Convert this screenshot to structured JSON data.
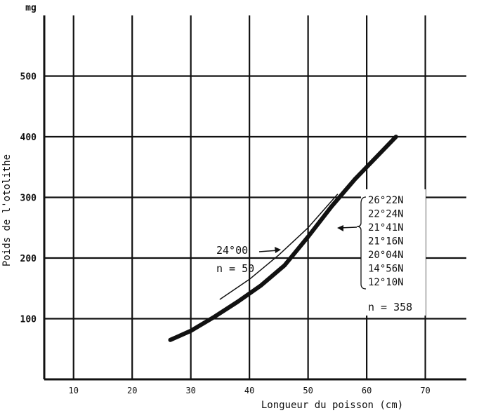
{
  "chart_data": {
    "type": "line",
    "title": "",
    "xlabel": "Longueur du poisson (cm)",
    "ylabel": "Poids de l'otolithe",
    "y_unit": "mg",
    "xlim": [
      5,
      77
    ],
    "ylim": [
      0,
      600
    ],
    "x_ticks": [
      "10",
      "20",
      "30",
      "40",
      "50",
      "60",
      "70"
    ],
    "y_ticks": [
      "100",
      "200",
      "300",
      "400",
      "500"
    ],
    "grid": true,
    "series": [
      {
        "x": [
          26.5,
          30,
          34,
          38,
          42,
          46,
          50,
          54,
          58,
          62,
          65
        ],
        "y": [
          65,
          80,
          103,
          128,
          155,
          188,
          235,
          285,
          330,
          370,
          400
        ]
      },
      {
        "x": [
          35,
          40,
          45,
          50,
          55
        ],
        "y": [
          132,
          165,
          205,
          250,
          305
        ]
      }
    ],
    "annotations": {
      "thin_curve_label": "24°00",
      "thin_curve_n": "n = 50",
      "thick_curve_latitudes": [
        "26°22N",
        "22°24N",
        "21°41N",
        "21°16N",
        "20°04N",
        "14°56N",
        "12°10N"
      ],
      "thick_curve_n": "n = 358"
    }
  }
}
